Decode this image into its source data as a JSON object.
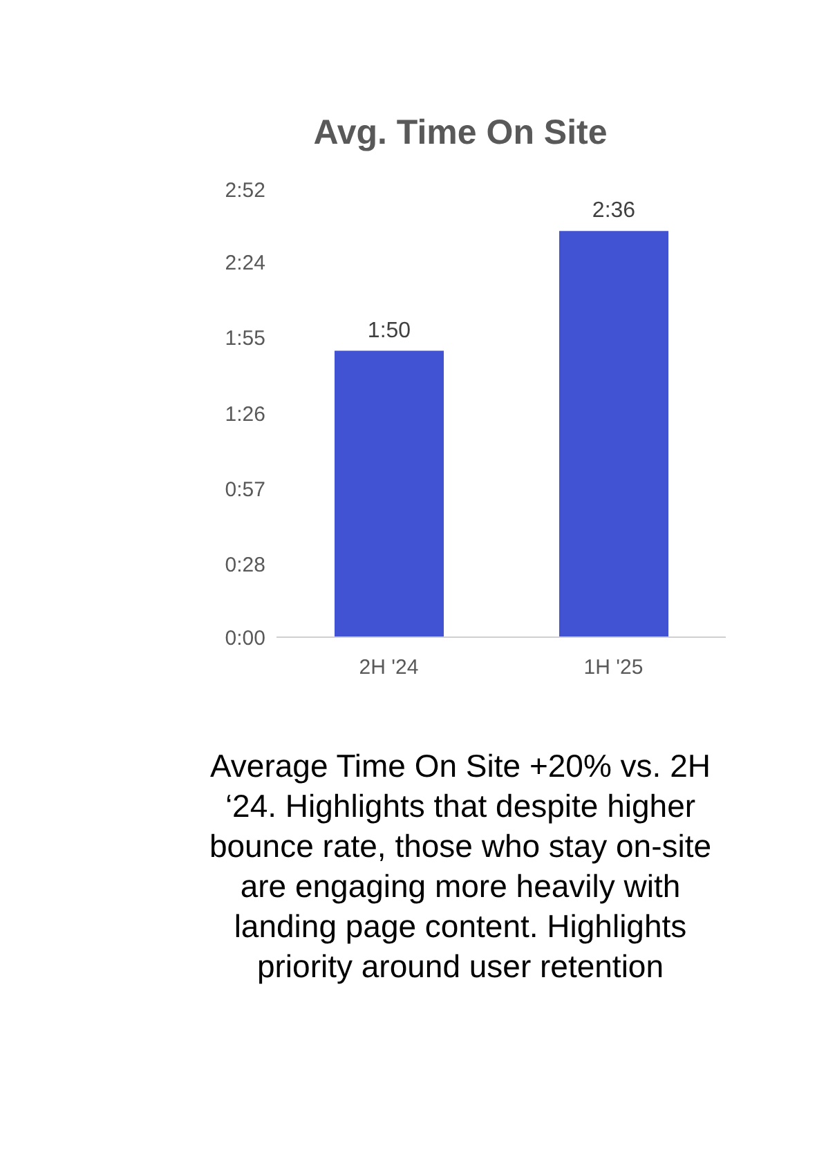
{
  "chart_data": {
    "type": "bar",
    "title": "Avg. Time On Site",
    "categories": [
      "2H '24",
      "1H '25"
    ],
    "values": [
      110,
      156
    ],
    "value_labels": [
      "1:50",
      "2:36"
    ],
    "color": "#4152d2",
    "ylim": [
      0,
      172
    ],
    "yticks": [
      {
        "value": 0,
        "label": "0:00"
      },
      {
        "value": 28,
        "label": "0:28"
      },
      {
        "value": 57,
        "label": "0:57"
      },
      {
        "value": 86,
        "label": "1:26"
      },
      {
        "value": 115,
        "label": "1:55"
      },
      {
        "value": 144,
        "label": "2:24"
      },
      {
        "value": 172,
        "label": "2:52"
      }
    ],
    "grid": false,
    "legend": false,
    "annotations": [
      "Average Time On Site +20% vs. 2H ‘24. Highlights that despite higher bounce rate, those who stay on-site are engaging more heavily with landing page content. Highlights priority around user retention"
    ]
  }
}
